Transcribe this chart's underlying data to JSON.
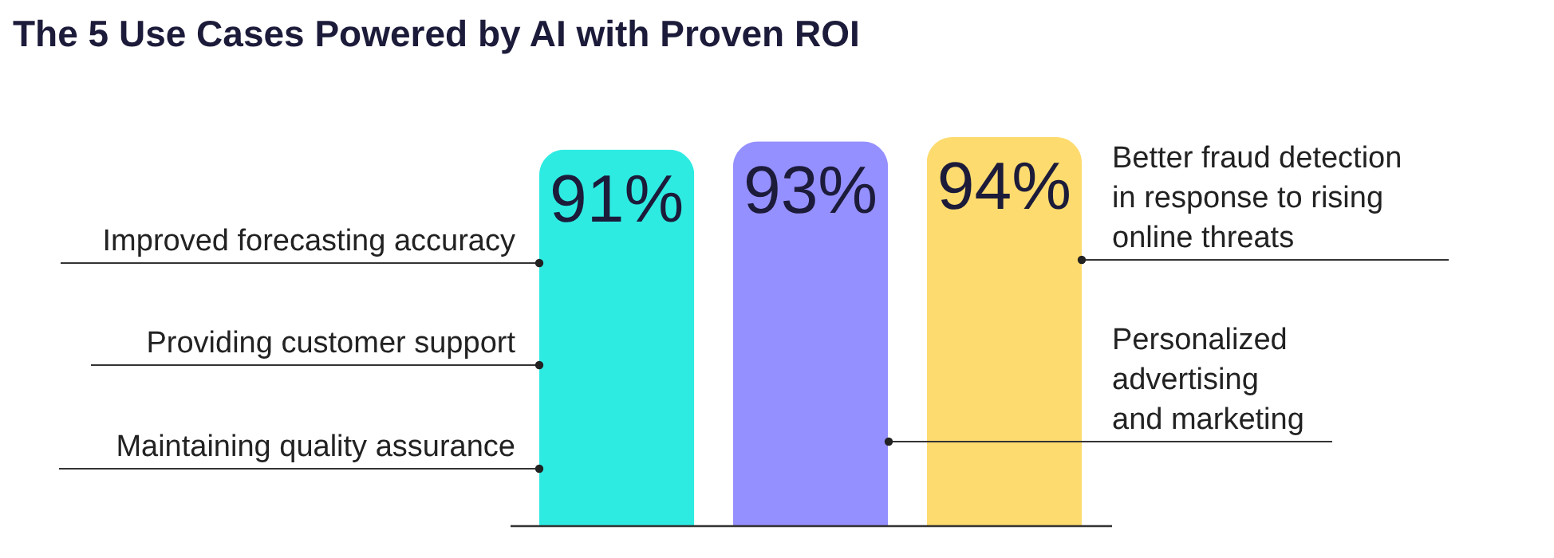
{
  "chart_data": {
    "type": "bar",
    "title": "The 5 Use Cases Powered by AI with Proven ROI",
    "categories": [
      null,
      null,
      null
    ],
    "values": [
      91,
      93,
      94
    ],
    "colors": [
      "#2eebe2",
      "#9590ff",
      "#fddb6e"
    ],
    "value_labels": [
      "91%",
      "93%",
      "94%"
    ],
    "annotations": [
      "Improved forecasting accuracy",
      "Providing customer support",
      "Maintaining quality assurance",
      "Better fraud detection\nin response to rising\nonline threats",
      "Personalized\nadvertising\nand marketing"
    ]
  }
}
